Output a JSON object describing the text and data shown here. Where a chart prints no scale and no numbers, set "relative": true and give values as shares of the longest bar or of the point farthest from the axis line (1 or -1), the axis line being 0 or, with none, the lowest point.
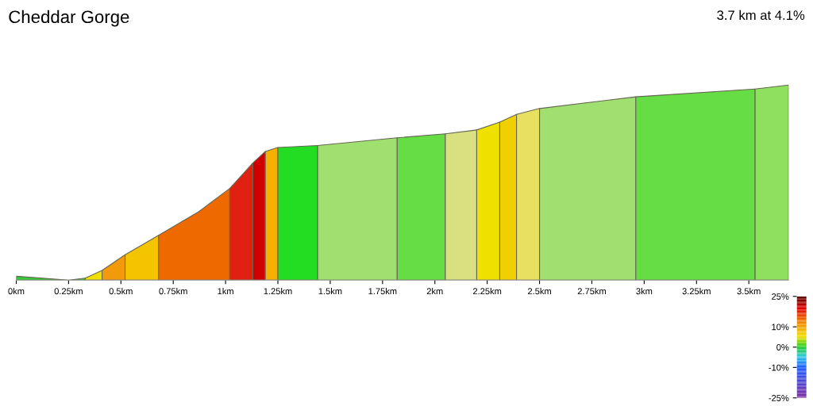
{
  "chart_data": {
    "type": "area",
    "title": "Cheddar Gorge",
    "annotations": [
      "3.7 km at 4.1%"
    ],
    "relative": true,
    "series": [
      {
        "x": [
          0,
          0.25,
          0.33
        ],
        "values": [
          0.02,
          0,
          0.01
        ],
        "color": "#33cc33"
      },
      {
        "x": [
          0.33,
          0.41
        ],
        "values": [
          0.01,
          0.05
        ],
        "color": "#f2e000"
      },
      {
        "x": [
          0.41,
          0.52
        ],
        "values": [
          0.05,
          0.13
        ],
        "color": "#f29a0c"
      },
      {
        "x": [
          0.52,
          0.68
        ],
        "values": [
          0.13,
          0.23
        ],
        "color": "#f5c400"
      },
      {
        "x": [
          0.68,
          0.87,
          1.02
        ],
        "values": [
          0.23,
          0.35,
          0.47
        ],
        "color": "#ee6a00"
      },
      {
        "x": [
          1.02,
          1.13
        ],
        "values": [
          0.47,
          0.6
        ],
        "color": "#e02010"
      },
      {
        "x": [
          1.13,
          1.19
        ],
        "values": [
          0.6,
          0.66
        ],
        "color": "#d00000"
      },
      {
        "x": [
          1.19,
          1.25
        ],
        "values": [
          0.66,
          0.68
        ],
        "color": "#f5b000"
      },
      {
        "x": [
          1.25,
          1.44
        ],
        "values": [
          0.68,
          0.69
        ],
        "color": "#22dd22"
      },
      {
        "x": [
          1.44,
          1.82
        ],
        "values": [
          0.69,
          0.73
        ],
        "color": "#a0e070"
      },
      {
        "x": [
          1.82,
          2.05
        ],
        "values": [
          0.73,
          0.75
        ],
        "color": "#66dd44"
      },
      {
        "x": [
          2.05,
          2.2
        ],
        "values": [
          0.75,
          0.77
        ],
        "color": "#d8e080"
      },
      {
        "x": [
          2.2,
          2.31
        ],
        "values": [
          0.77,
          0.81
        ],
        "color": "#f0e000"
      },
      {
        "x": [
          2.31,
          2.39
        ],
        "values": [
          0.81,
          0.85
        ],
        "color": "#f0d000"
      },
      {
        "x": [
          2.39,
          2.5
        ],
        "values": [
          0.85,
          0.88
        ],
        "color": "#e8e060"
      },
      {
        "x": [
          2.5,
          2.96
        ],
        "values": [
          0.88,
          0.94
        ],
        "color": "#a0e070"
      },
      {
        "x": [
          2.96,
          3.53
        ],
        "values": [
          0.94,
          0.98
        ],
        "color": "#66dd44"
      },
      {
        "x": [
          3.53,
          3.69
        ],
        "values": [
          0.98,
          1
        ],
        "color": "#90e060"
      }
    ],
    "xlim": [
      0,
      3.69
    ],
    "xticks": [
      {
        "value": 0,
        "label": "0km"
      },
      {
        "value": 0.25,
        "label": "0.25km"
      },
      {
        "value": 0.5,
        "label": "0.5km"
      },
      {
        "value": 0.75,
        "label": "0.75km"
      },
      {
        "value": 1,
        "label": "1km"
      },
      {
        "value": 1.25,
        "label": "1.25km"
      },
      {
        "value": 1.5,
        "label": "1.5km"
      },
      {
        "value": 1.75,
        "label": "1.75km"
      },
      {
        "value": 2,
        "label": "2km"
      },
      {
        "value": 2.25,
        "label": "2.25km"
      },
      {
        "value": 2.5,
        "label": "2.5km"
      },
      {
        "value": 2.75,
        "label": "2.75km"
      },
      {
        "value": 3,
        "label": "3km"
      },
      {
        "value": 3.25,
        "label": "3.25km"
      },
      {
        "value": 3.5,
        "label": "3.5km"
      }
    ],
    "clim": [
      -25,
      25
    ],
    "cticks": [
      {
        "value": 25,
        "label": "25%"
      },
      {
        "value": 10,
        "label": "10%"
      },
      {
        "value": 0,
        "label": "0%"
      },
      {
        "value": -10,
        "label": "-10%"
      },
      {
        "value": -25,
        "label": "-25%"
      }
    ],
    "grid": false
  }
}
